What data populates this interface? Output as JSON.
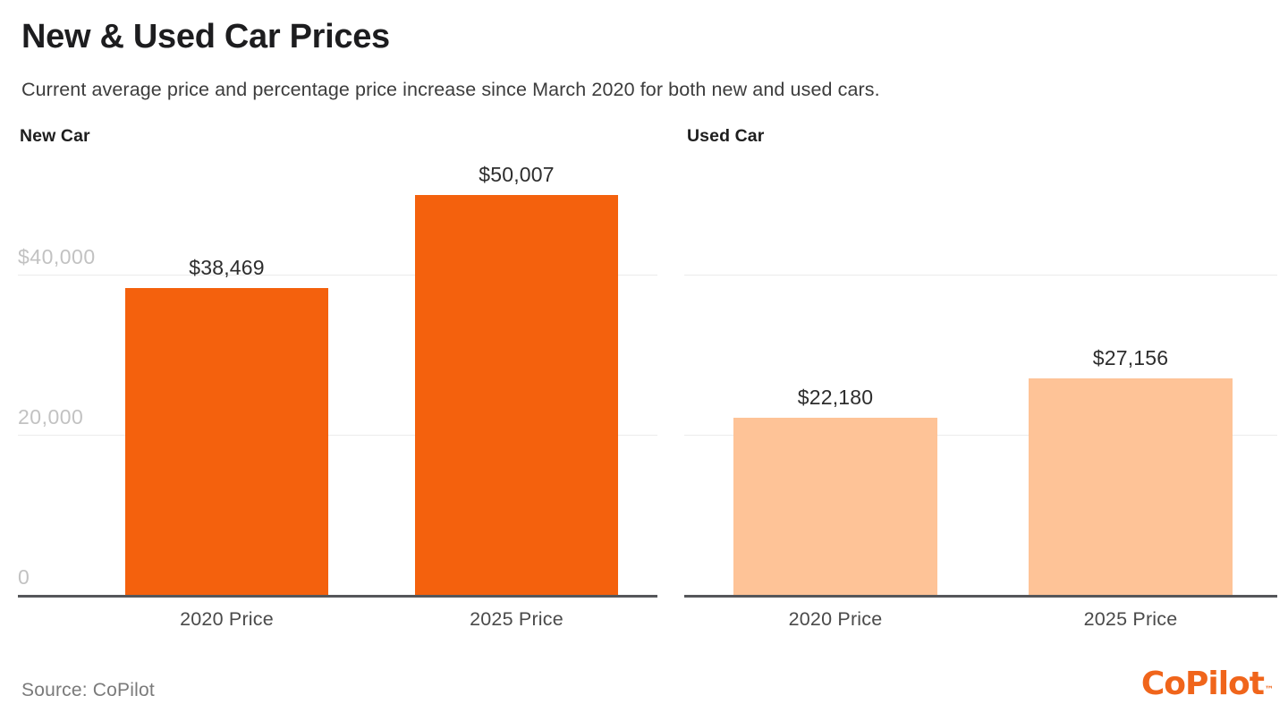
{
  "header": {
    "title": "New & Used Car Prices",
    "subtitle": "Current average price and percentage price increase since March 2020 for both new and used cars."
  },
  "chart_data": [
    {
      "type": "bar",
      "title": "New Car",
      "categories": [
        "2020 Price",
        "2025 Price"
      ],
      "values": [
        38469,
        50007
      ],
      "value_labels": [
        "$38,469",
        "$50,007"
      ],
      "bar_color": "#f4610d",
      "ylim": [
        0,
        55400
      ],
      "grid_values": [
        20000,
        40000
      ],
      "yticks": [
        {
          "value": 40000,
          "label": "$40,000"
        },
        {
          "value": 20000,
          "label": "20,000"
        },
        {
          "value": 0,
          "label": "0"
        }
      ],
      "grid": true,
      "legend": "none"
    },
    {
      "type": "bar",
      "title": "Used Car",
      "categories": [
        "2020 Price",
        "2025 Price"
      ],
      "values": [
        22180,
        27156
      ],
      "value_labels": [
        "$22,180",
        "$27,156"
      ],
      "bar_color": "#fec397",
      "ylim": [
        0,
        55400
      ],
      "grid_values": [
        20000,
        40000
      ],
      "yticks": [],
      "grid": true,
      "legend": "none"
    }
  ],
  "footer": {
    "source": "Source: CoPilot",
    "logo_text": "CoPilot",
    "logo_tm": "™"
  },
  "colors": {
    "new_car_bar": "#f4610d",
    "used_car_bar": "#fec397",
    "logo_orange": "#f0651b",
    "title_text": "#1d1d1f",
    "axis_tick_text": "#c2c2c2",
    "axis_baseline": "#55565a",
    "gridline": "#ebebeb"
  }
}
